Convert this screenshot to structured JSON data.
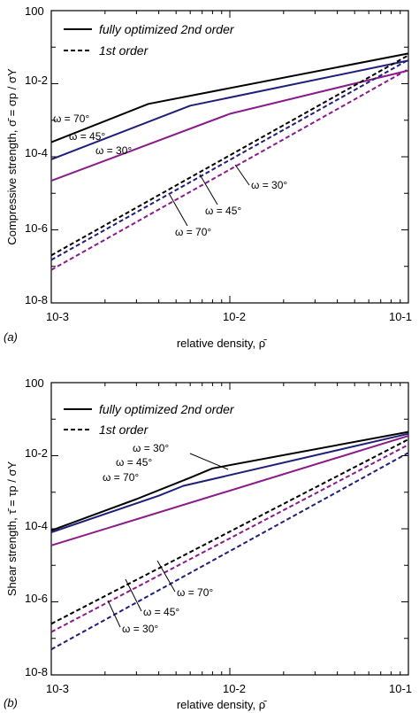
{
  "chart_data": [
    {
      "type": "line",
      "panel_label": "(a)",
      "xlabel": "relative density, ρ̄",
      "ylabel": "Compressive strength, σ̄ = σp / σY",
      "xscale": "log",
      "yscale": "log",
      "xlim": [
        0.001,
        0.1
      ],
      "ylim": [
        1e-08,
        1
      ],
      "x_tick_labels": [
        "10-3",
        "10-2",
        "10-1"
      ],
      "y_tick_labels": [
        "100",
        "10-2",
        "10-4",
        "10-6",
        "10-8"
      ],
      "legend": [
        {
          "label": "fully optimized 2nd order",
          "style": "solid"
        },
        {
          "label": "1st order",
          "style": "dashed"
        }
      ],
      "legend_position": "top-left",
      "grid": false,
      "colors": {
        "omega_70": "#000000",
        "omega_45": "#1f1f7a",
        "omega_30": "#8b1a8b"
      },
      "series": [
        {
          "style": "solid",
          "color": "#000000",
          "x": [
            0.001,
            0.0035,
            0.1
          ],
          "y": [
            0.00025,
            0.0028,
            0.067
          ]
        },
        {
          "style": "solid",
          "color": "#1f1f7a",
          "x": [
            0.001,
            0.006,
            0.1
          ],
          "y": [
            8.5e-05,
            0.0025,
            0.043
          ]
        },
        {
          "style": "solid",
          "color": "#8b1a8b",
          "x": [
            0.001,
            0.01,
            0.1
          ],
          "y": [
            2.2e-05,
            0.0015,
            0.023
          ]
        },
        {
          "style": "dashed",
          "color": "#000000",
          "x": [
            0.001,
            0.1
          ],
          "y": [
            2e-07,
            0.06
          ]
        },
        {
          "style": "dashed",
          "color": "#1f1f7a",
          "x": [
            0.001,
            0.1
          ],
          "y": [
            1.5e-07,
            0.045
          ]
        },
        {
          "style": "dashed",
          "color": "#8b1a8b",
          "x": [
            0.001,
            0.1
          ],
          "y": [
            8e-08,
            0.025
          ]
        }
      ],
      "annotations": [
        {
          "text": "ω = 70°",
          "color": "#000000"
        },
        {
          "text": "ω = 45°",
          "color": "#1f1f7a"
        },
        {
          "text": "ω = 30°",
          "color": "#8b1a8b"
        },
        {
          "text": "ω = 30°",
          "color": "#8b1a8b"
        },
        {
          "text": "ω = 45°",
          "color": "#1f1f7a"
        },
        {
          "text": "ω = 70°",
          "color": "#000000"
        }
      ]
    },
    {
      "type": "line",
      "panel_label": "(b)",
      "xlabel": "relative density, ρ̄",
      "ylabel": "Shear strength, τ̄ = τp / σY",
      "xscale": "log",
      "yscale": "log",
      "xlim": [
        0.001,
        0.1
      ],
      "ylim": [
        1e-08,
        1
      ],
      "x_tick_labels": [
        "10-3",
        "10-2",
        "10-1"
      ],
      "y_tick_labels": [
        "100",
        "10-2",
        "10-4",
        "10-6",
        "10-8"
      ],
      "legend": [
        {
          "label": "fully optimized 2nd order",
          "style": "solid"
        },
        {
          "label": "1st order",
          "style": "dashed"
        }
      ],
      "legend_position": "top-left",
      "grid": false,
      "colors": {
        "omega_70": "#1f1f7a",
        "omega_45": "#000000",
        "omega_30": "#8b1a8b"
      },
      "series": [
        {
          "style": "solid",
          "color": "#000000",
          "x": [
            0.001,
            0.003,
            0.006,
            0.008,
            0.1
          ],
          "y": [
            9e-05,
            0.00065,
            0.0025,
            0.0045,
            0.045
          ]
        },
        {
          "style": "solid",
          "color": "#1f1f7a",
          "x": [
            0.001,
            0.004,
            0.0055,
            0.1
          ],
          "y": [
            8e-05,
            0.0008,
            0.0015,
            0.04
          ]
        },
        {
          "style": "solid",
          "color": "#8b1a8b",
          "x": [
            0.001,
            0.1
          ],
          "y": [
            3.5e-05,
            0.035
          ]
        },
        {
          "style": "dashed",
          "color": "#000000",
          "x": [
            0.001,
            0.1
          ],
          "y": [
            2.5e-07,
            0.028
          ]
        },
        {
          "style": "dashed",
          "color": "#8b1a8b",
          "x": [
            0.001,
            0.1
          ],
          "y": [
            1.5e-07,
            0.02
          ]
        },
        {
          "style": "dashed",
          "color": "#1f1f7a",
          "x": [
            0.001,
            0.1
          ],
          "y": [
            5e-08,
            0.012
          ]
        }
      ],
      "annotations": [
        {
          "text": "ω = 30°",
          "color": "#8b1a8b"
        },
        {
          "text": "ω = 45°",
          "color": "#000000"
        },
        {
          "text": "ω = 70°",
          "color": "#1f1f7a"
        },
        {
          "text": "ω = 70°",
          "color": "#1f1f7a"
        },
        {
          "text": "ω = 45°",
          "color": "#000000"
        },
        {
          "text": "ω = 30°",
          "color": "#8b1a8b"
        }
      ]
    }
  ]
}
